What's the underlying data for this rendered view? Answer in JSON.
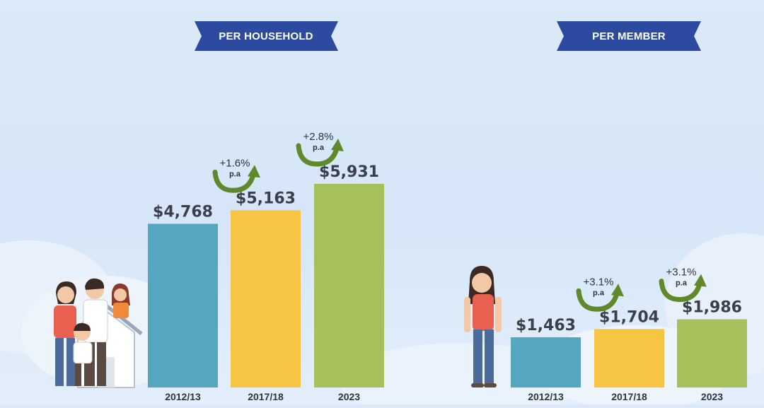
{
  "chart_data": [
    {
      "type": "bar",
      "title": "PER HOUSEHOLD",
      "categories": [
        "2012/13",
        "2017/18",
        "2023"
      ],
      "values": [
        4768,
        5163,
        5931
      ],
      "value_labels": [
        "$4,768",
        "$5,163",
        "$5,931"
      ],
      "colors": [
        "#55a7bf",
        "#f6c544",
        "#a6c15b"
      ],
      "growth": [
        {
          "text": "+1.6%",
          "sub": "p.a"
        },
        {
          "text": "+2.8%",
          "sub": "p.a"
        }
      ],
      "ylim": [
        0,
        6500
      ],
      "grid": false
    },
    {
      "type": "bar",
      "title": "PER MEMBER",
      "categories": [
        "2012/13",
        "2017/18",
        "2023"
      ],
      "values": [
        1463,
        1704,
        1986
      ],
      "value_labels": [
        "$1,463",
        "$1,704",
        "$1,986"
      ],
      "colors": [
        "#55a7bf",
        "#f6c544",
        "#a6c15b"
      ],
      "growth": [
        {
          "text": "+3.1%",
          "sub": "p.a"
        },
        {
          "text": "+3.1%",
          "sub": "p.a"
        }
      ],
      "ylim": [
        0,
        6500
      ],
      "grid": false
    }
  ],
  "colors": {
    "banner": "#2c4aa0",
    "arrow": "#5e8a2c",
    "text": "#3a3f49"
  },
  "illustrations": [
    "family-icon",
    "woman-icon"
  ]
}
